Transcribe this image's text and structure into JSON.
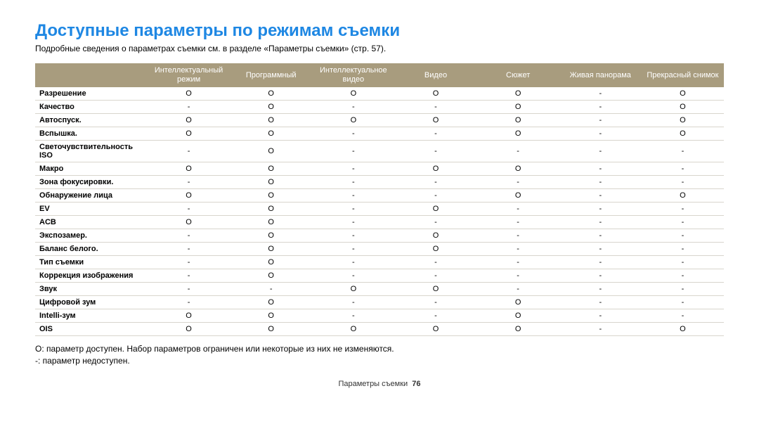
{
  "title": "Доступные параметры по режимам съемки",
  "subtitle": "Подробные сведения о параметрах съемки см. в разделе «Параметры съемки» (стр. 57).",
  "table": {
    "columns": [
      "Интеллектуальный режим",
      "Программный",
      "Интеллектуальное видео",
      "Видео",
      "Сюжет",
      "Живая панорама",
      "Прекрасный снимок"
    ],
    "rows": [
      {
        "label": "Разрешение",
        "cells": [
          "O",
          "O",
          "O",
          "O",
          "O",
          "-",
          "O"
        ]
      },
      {
        "label": "Качество",
        "cells": [
          "-",
          "O",
          "-",
          "-",
          "O",
          "-",
          "O"
        ]
      },
      {
        "label": "Автоспуск.",
        "cells": [
          "O",
          "O",
          "O",
          "O",
          "O",
          "-",
          "O"
        ]
      },
      {
        "label": "Вспышка.",
        "cells": [
          "O",
          "O",
          "-",
          "-",
          "O",
          "-",
          "O"
        ]
      },
      {
        "label": "Светочувствительность ISO",
        "cells": [
          "-",
          "O",
          "-",
          "-",
          "-",
          "-",
          "-"
        ]
      },
      {
        "label": "Макро",
        "cells": [
          "O",
          "O",
          "-",
          "O",
          "O",
          "-",
          "-"
        ]
      },
      {
        "label": "Зона фокусировки.",
        "cells": [
          "-",
          "O",
          "-",
          "-",
          "-",
          "-",
          "-"
        ]
      },
      {
        "label": "Обнаружение лица",
        "cells": [
          "O",
          "O",
          "-",
          "-",
          "O",
          "-",
          "O"
        ]
      },
      {
        "label": "EV",
        "cells": [
          "-",
          "O",
          "-",
          "O",
          "-",
          "-",
          "-"
        ]
      },
      {
        "label": "ACB",
        "cells": [
          "O",
          "O",
          "-",
          "-",
          "-",
          "-",
          "-"
        ]
      },
      {
        "label": "Экспозамер.",
        "cells": [
          "-",
          "O",
          "-",
          "O",
          "-",
          "-",
          "-"
        ]
      },
      {
        "label": "Баланс белого.",
        "cells": [
          "-",
          "O",
          "-",
          "O",
          "-",
          "-",
          "-"
        ]
      },
      {
        "label": "Тип съемки",
        "cells": [
          "-",
          "O",
          "-",
          "-",
          "-",
          "-",
          "-"
        ]
      },
      {
        "label": "Коррекция изображения",
        "cells": [
          "-",
          "O",
          "-",
          "-",
          "-",
          "-",
          "-"
        ]
      },
      {
        "label": "Звук",
        "cells": [
          "-",
          "-",
          "O",
          "O",
          "-",
          "-",
          "-"
        ]
      },
      {
        "label": "Цифровой зум",
        "cells": [
          "-",
          "O",
          "-",
          "-",
          "O",
          "-",
          "-"
        ]
      },
      {
        "label": "Intelli-зум",
        "cells": [
          "O",
          "O",
          "-",
          "-",
          "O",
          "-",
          "-"
        ]
      },
      {
        "label": "OIS",
        "cells": [
          "O",
          "O",
          "O",
          "O",
          "O",
          "-",
          "O"
        ]
      }
    ]
  },
  "note1": "O: параметр доступен. Набор параметров ограничен или некоторые из них не изменяются.",
  "note2": "-: параметр недоступен.",
  "footer_label": "Параметры съемки",
  "footer_page": "76"
}
